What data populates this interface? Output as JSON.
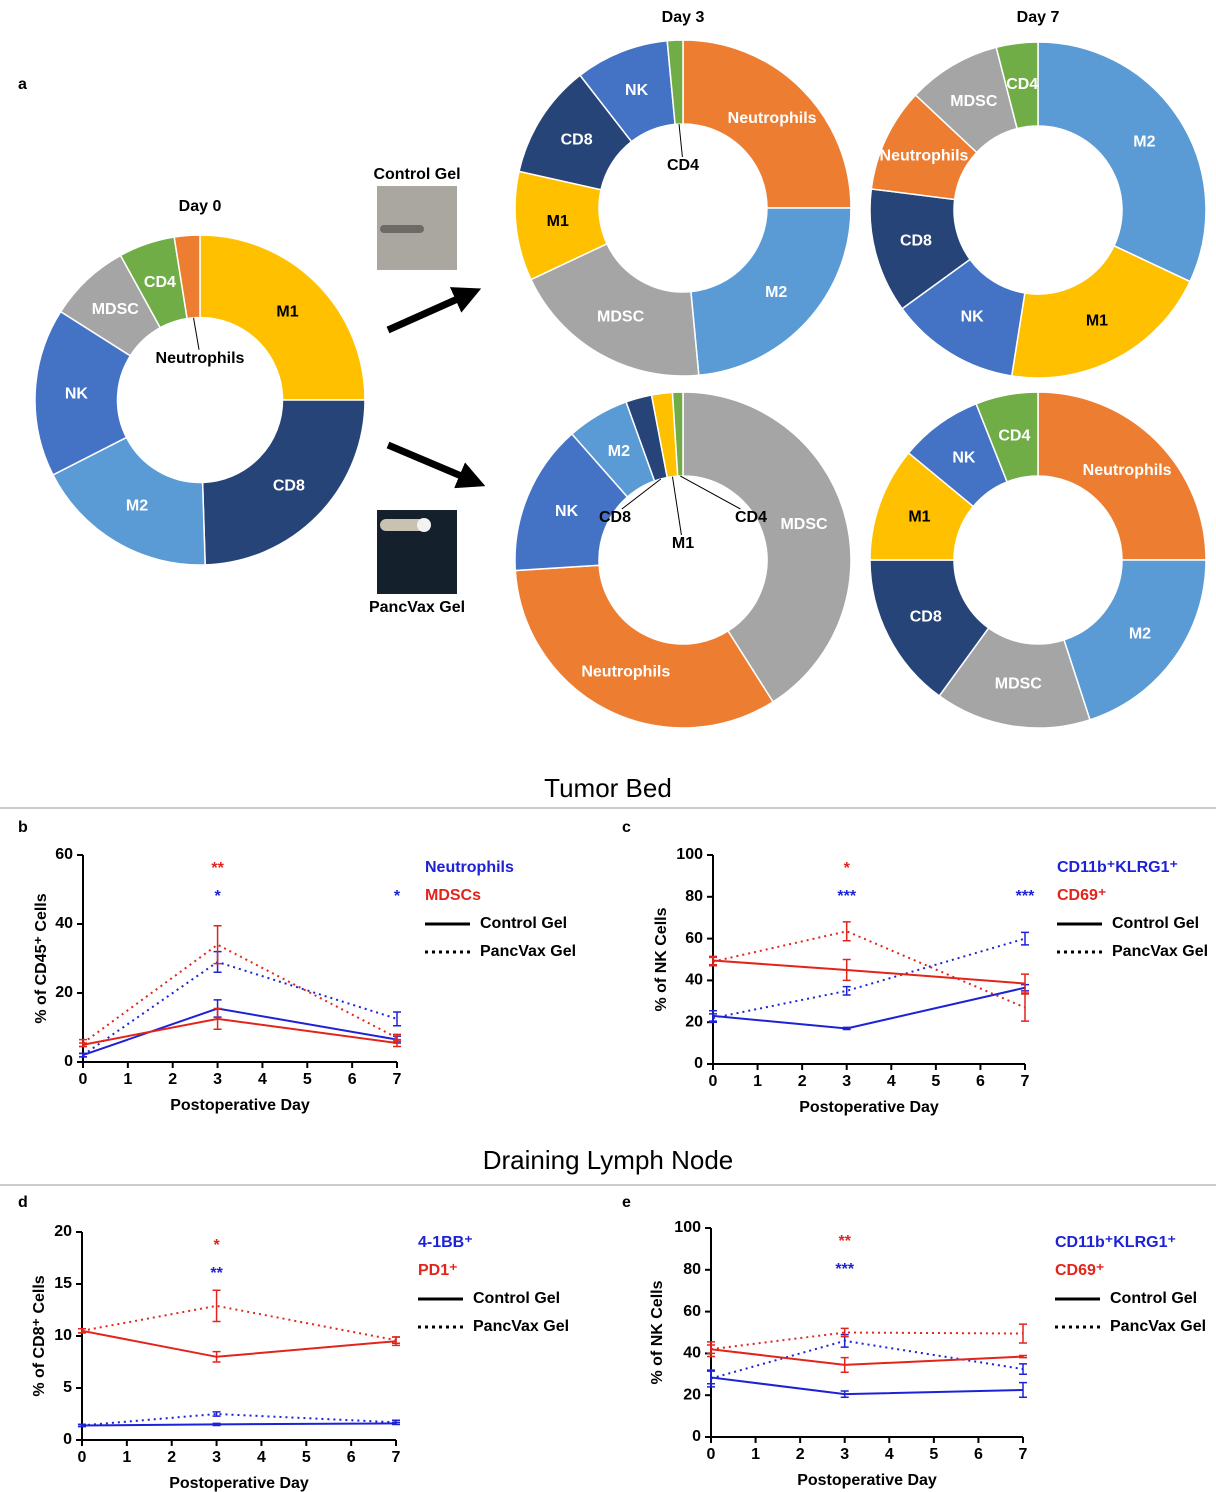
{
  "figure": {
    "panels": [
      "a",
      "b",
      "c",
      "d",
      "e"
    ],
    "sections": [
      "Tumor Bed",
      "Draining Lymph Node"
    ],
    "treatments": [
      "Control Gel",
      "PancVax Gel"
    ]
  },
  "chart_data": [
    {
      "type": "donut",
      "title": "Day 0",
      "categories": [
        "M1",
        "CD8",
        "M2",
        "NK",
        "MDSC",
        "CD4",
        "Neutrophils"
      ],
      "values": [
        25,
        24.5,
        18,
        16.5,
        8,
        5.5,
        2.5
      ],
      "colors": [
        "#ffc000",
        "#264478",
        "#5b9bd5",
        "#4472c4",
        "#a5a5a5",
        "#70ad47",
        "#ed7d31"
      ]
    },
    {
      "type": "donut",
      "title": "Day 3",
      "categories": [
        "Neutrophils",
        "M2",
        "MDSC",
        "M1",
        "CD8",
        "NK",
        "CD4"
      ],
      "values": [
        25,
        23.5,
        19.5,
        10.5,
        11,
        9,
        1.5
      ],
      "colors": [
        "#ed7d31",
        "#5b9bd5",
        "#a5a5a5",
        "#ffc000",
        "#264478",
        "#4472c4",
        "#70ad47"
      ]
    },
    {
      "type": "donut",
      "title": "Day 7",
      "categories": [
        "M2",
        "M1",
        "NK",
        "CD8",
        "Neutrophils",
        "MDSC",
        "CD4"
      ],
      "values": [
        32,
        20.5,
        12.5,
        12,
        10,
        9,
        4
      ],
      "colors": [
        "#5b9bd5",
        "#ffc000",
        "#4472c4",
        "#264478",
        "#ed7d31",
        "#a5a5a5",
        "#70ad47"
      ]
    },
    {
      "type": "donut",
      "categories": [
        "MDSC",
        "Neutrophils",
        "NK",
        "M2",
        "CD8",
        "M1",
        "CD4"
      ],
      "values": [
        41,
        33,
        14.5,
        6,
        2.5,
        2,
        1
      ],
      "colors": [
        "#a5a5a5",
        "#ed7d31",
        "#4472c4",
        "#5b9bd5",
        "#264478",
        "#ffc000",
        "#70ad47"
      ]
    },
    {
      "type": "donut",
      "categories": [
        "Neutrophils",
        "M2",
        "MDSC",
        "CD8",
        "M1",
        "NK",
        "CD4"
      ],
      "values": [
        25,
        20,
        15,
        15,
        11,
        8,
        6
      ],
      "colors": [
        "#ed7d31",
        "#5b9bd5",
        "#a5a5a5",
        "#264478",
        "#ffc000",
        "#4472c4",
        "#70ad47"
      ]
    },
    {
      "type": "line",
      "x_label": "Postoperative Day",
      "y_label": "% of CD45⁺ Cells",
      "x": [
        0,
        3,
        7
      ],
      "xlim": [
        0,
        7
      ],
      "xticks": [
        0,
        1,
        2,
        3,
        4,
        5,
        6,
        7
      ],
      "ylim": [
        0,
        60
      ],
      "yticks": [
        0,
        20,
        40,
        60
      ],
      "line_styles": [
        {
          "name": "Control Gel",
          "dash": "solid"
        },
        {
          "name": "PancVax Gel",
          "dash": "dotted"
        }
      ],
      "series": [
        {
          "name": "Neutrophils",
          "color": "#1e22d6",
          "lines": [
            {
              "values": [
                2,
                15.5,
                6.5
              ],
              "errors": [
                0.5,
                2.5,
                1
              ]
            },
            {
              "values": [
                2,
                29,
                12.5
              ],
              "errors": [
                0.5,
                3,
                2
              ]
            }
          ],
          "significance": [
            null,
            "*",
            "*"
          ]
        },
        {
          "name": "MDSCs",
          "color": "#e3241b",
          "lines": [
            {
              "values": [
                5,
                12.5,
                5.5
              ],
              "errors": [
                0.5,
                3,
                1
              ]
            },
            {
              "values": [
                5.5,
                34,
                7
              ],
              "errors": [
                1,
                5.5,
                1
              ]
            }
          ],
          "significance": [
            null,
            "**",
            null
          ]
        }
      ]
    },
    {
      "type": "line",
      "x_label": "Postoperative Day",
      "y_label": "% of NK Cells",
      "x": [
        0,
        3,
        7
      ],
      "xlim": [
        0,
        7
      ],
      "xticks": [
        0,
        1,
        2,
        3,
        4,
        5,
        6,
        7
      ],
      "ylim": [
        0,
        100
      ],
      "yticks": [
        0,
        20,
        40,
        60,
        80,
        100
      ],
      "line_styles": [
        {
          "name": "Control Gel",
          "dash": "solid"
        },
        {
          "name": "PancVax Gel",
          "dash": "dotted"
        }
      ],
      "series": [
        {
          "name": "CD11b⁺KLRG1⁺",
          "color": "#1e22d6",
          "lines": [
            {
              "values": [
                23,
                17,
                36.5
              ],
              "errors": [
                2.5,
                0.5,
                1.5
              ]
            },
            {
              "values": [
                22,
                35,
                60
              ],
              "errors": [
                2,
                2,
                3
              ]
            }
          ],
          "significance": [
            null,
            "***",
            "***"
          ]
        },
        {
          "name": "CD69⁺",
          "color": "#e3241b",
          "lines": [
            {
              "values": [
                49.5,
                45,
                38.5
              ],
              "errors": [
                2,
                5,
                4.5
              ]
            },
            {
              "values": [
                49,
                63.5,
                27
              ],
              "errors": [
                2,
                4.5,
                6.5
              ]
            }
          ],
          "significance": [
            null,
            "*",
            null
          ]
        }
      ]
    },
    {
      "type": "line",
      "x_label": "Postoperative Day",
      "y_label": "% of CD8⁺ Cells",
      "x": [
        0,
        3,
        7
      ],
      "xlim": [
        0,
        7
      ],
      "xticks": [
        0,
        1,
        2,
        3,
        4,
        5,
        6,
        7
      ],
      "ylim": [
        0,
        20
      ],
      "yticks": [
        0,
        5,
        10,
        15,
        20
      ],
      "line_styles": [
        {
          "name": "Control Gel",
          "dash": "solid"
        },
        {
          "name": "PancVax Gel",
          "dash": "dotted"
        }
      ],
      "series": [
        {
          "name": "4-1BB⁺",
          "color": "#1e22d6",
          "lines": [
            {
              "values": [
                1.4,
                1.5,
                1.6
              ],
              "errors": [
                0.1,
                0.1,
                0.1
              ]
            },
            {
              "values": [
                1.4,
                2.5,
                1.7
              ],
              "errors": [
                0.1,
                0.2,
                0.2
              ]
            }
          ],
          "significance": [
            null,
            "**",
            null
          ]
        },
        {
          "name": "PD1⁺",
          "color": "#e3241b",
          "lines": [
            {
              "values": [
                10.5,
                8,
                9.5
              ],
              "errors": [
                0.2,
                0.5,
                0.4
              ]
            },
            {
              "values": [
                10.5,
                12.9,
                9.6
              ],
              "errors": [
                0.2,
                1.5,
                0.3
              ]
            }
          ],
          "significance": [
            null,
            "*",
            null
          ]
        }
      ]
    },
    {
      "type": "line",
      "x_label": "Postoperative Day",
      "y_label": "% of NK Cells",
      "x": [
        0,
        3,
        7
      ],
      "xlim": [
        0,
        7
      ],
      "xticks": [
        0,
        1,
        2,
        3,
        4,
        5,
        6,
        7
      ],
      "ylim": [
        0,
        100
      ],
      "yticks": [
        0,
        20,
        40,
        60,
        80,
        100
      ],
      "line_styles": [
        {
          "name": "Control Gel",
          "dash": "solid"
        },
        {
          "name": "PancVax Gel",
          "dash": "dotted"
        }
      ],
      "series": [
        {
          "name": "CD11b⁺KLRG1⁺",
          "color": "#1e22d6",
          "lines": [
            {
              "values": [
                28.5,
                20.5,
                22.5
              ],
              "errors": [
                3,
                1.5,
                3.5
              ]
            },
            {
              "values": [
                28,
                46,
                32.5
              ],
              "errors": [
                4,
                3,
                2.5
              ]
            }
          ],
          "significance": [
            null,
            "***",
            null
          ]
        },
        {
          "name": "CD69⁺",
          "color": "#e3241b",
          "lines": [
            {
              "values": [
                42,
                34.5,
                38.5
              ],
              "errors": [
                3.5,
                3.5,
                0.5
              ]
            },
            {
              "values": [
                42,
                50,
                49.5
              ],
              "errors": [
                2,
                2,
                4.5
              ]
            }
          ],
          "significance": [
            null,
            "**",
            null
          ]
        }
      ]
    }
  ]
}
